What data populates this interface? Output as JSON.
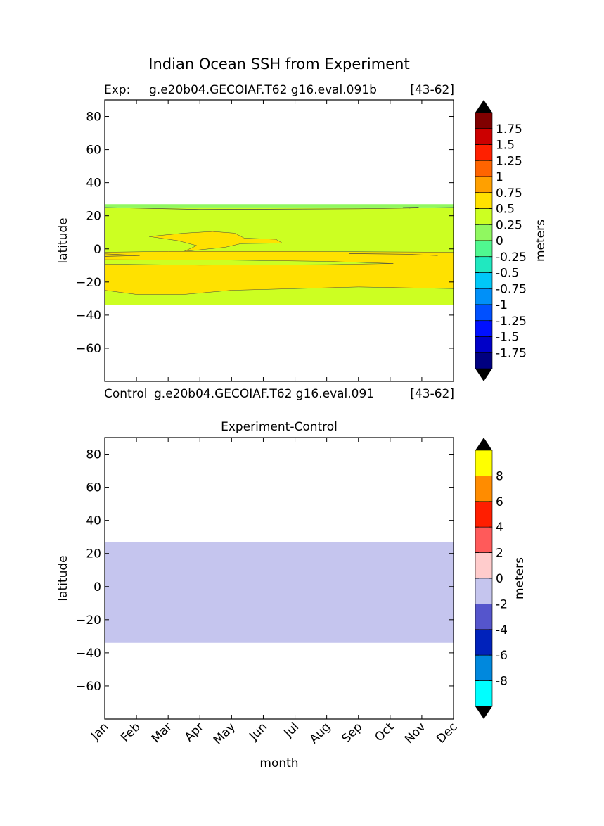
{
  "figure": {
    "title": "Indian Ocean SSH from Experiment",
    "x_tick_labels": [
      "Jan",
      "Feb",
      "Mar",
      "Apr",
      "May",
      "Jun",
      "Jul",
      "Aug",
      "Sep",
      "Oct",
      "Nov",
      "Dec"
    ],
    "xlabel": "month"
  },
  "chart_data": [
    {
      "type": "heatmap",
      "name": "experiment-panel",
      "title_left": "Exp:",
      "title_center": "g.e20b04.GECOIAF.T62 g16.eval.091b",
      "title_right": "[43-62]",
      "xlabel": "",
      "ylabel": "latitude",
      "ylim": [
        -80,
        90
      ],
      "y_ticks": [
        80,
        60,
        40,
        20,
        0,
        -20,
        -40,
        -60
      ],
      "y_tick_labels": [
        "80",
        "60",
        "40",
        "20",
        "0",
        "−20",
        "−40",
        "−60"
      ],
      "x": [
        "Jan",
        "Feb",
        "Mar",
        "Apr",
        "May",
        "Jun",
        "Jul",
        "Aug",
        "Sep",
        "Oct",
        "Nov",
        "Dec"
      ],
      "data_lat_range": [
        -34,
        27
      ],
      "regions": [
        {
          "level": "0 to 0.25",
          "color": "#90f860",
          "lat": [
            25,
            27
          ]
        },
        {
          "level": "0.25 to 0.5",
          "color": "#ccff22",
          "lat": [
            -34,
            25
          ]
        },
        {
          "level": "0.5 to 0.75",
          "color": "#ffe100",
          "lat": [
            -28,
            -8
          ]
        },
        {
          "level": "0.5 to 0.75",
          "color": "#ffe100",
          "lat": [
            -2,
            10
          ]
        }
      ],
      "colorbar": {
        "label": "meters",
        "tick_labels": [
          "1.75",
          "1.5",
          "1.25",
          "1",
          "0.75",
          "0.5",
          "0.25",
          "0",
          "-0.25",
          "-0.5",
          "-0.75",
          "-1",
          "-1.25",
          "-1.5",
          "-1.75"
        ],
        "colors": [
          "#800000",
          "#cc0000",
          "#ff2000",
          "#ff6400",
          "#ffa000",
          "#ffe100",
          "#ccff22",
          "#90f860",
          "#50f890",
          "#20e8c0",
          "#00c8f8",
          "#0090f8",
          "#0050ff",
          "#0010ff",
          "#0000c8",
          "#000080"
        ]
      }
    },
    {
      "type": "heatmap",
      "name": "difference-panel",
      "header_left": "Control",
      "header_center": "g.e20b04.GECOIAF.T62 g16.eval.091",
      "header_right": "[43-62]",
      "title": "Experiment-Control",
      "xlabel": "month",
      "ylabel": "latitude",
      "ylim": [
        -80,
        90
      ],
      "y_ticks": [
        80,
        60,
        40,
        20,
        0,
        -20,
        -40,
        -60
      ],
      "y_tick_labels": [
        "80",
        "60",
        "40",
        "20",
        "0",
        "−20",
        "−40",
        "−60"
      ],
      "x": [
        "Jan",
        "Feb",
        "Mar",
        "Apr",
        "May",
        "Jun",
        "Jul",
        "Aug",
        "Sep",
        "Oct",
        "Nov",
        "Dec"
      ],
      "data_lat_range": [
        -34,
        27
      ],
      "regions": [
        {
          "level": "-2 to 0",
          "color": "#c5c5ee",
          "lat": [
            -34,
            27
          ]
        }
      ],
      "colorbar": {
        "label": "meters",
        "tick_labels": [
          "8",
          "6",
          "4",
          "2",
          "0",
          "-2",
          "-4",
          "-6",
          "-8"
        ],
        "colors": [
          "#ffff00",
          "#ff8c00",
          "#ff1e00",
          "#ff5a5a",
          "#ffcccc",
          "#c5c5ee",
          "#5555cc",
          "#0022bb",
          "#0088dd",
          "#00ffff"
        ]
      }
    }
  ]
}
